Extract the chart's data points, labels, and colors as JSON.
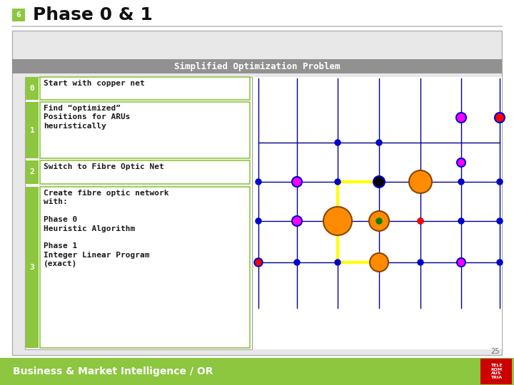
{
  "title": "Phase 0 & 1",
  "slide_number": "6",
  "section_header": "Simplified Optimization Problem",
  "steps": [
    {
      "num": "0",
      "text": "Start with copper net"
    },
    {
      "num": "1",
      "text": "Find “optimized”\nPositions for ARUs\nheuristically"
    },
    {
      "num": "2",
      "text": "Switch to Fibre Optic Net"
    },
    {
      "num": "3",
      "text": "Create fibre optic network\nwith:\n\nPhase 0\nHeuristic Algorithm\n\nPhase 1\nInteger Linear Program\n(exact)"
    }
  ],
  "footer_text": "Business & Market Intelligence / OR",
  "footer_bg": "#8dc63f",
  "slide_bg": "#ffffff",
  "header_bg": "#919191",
  "step_label_bg": "#8dc63f",
  "step_box_border": "#8dc63f",
  "grid_line_color": "#00008b",
  "yellow_line_color": "#ffff00",
  "blue_dot_color": "#0000cd",
  "telecom_red": "#cc0000",
  "slide_number_text": "25",
  "content_bg": "#ffffff",
  "content_border": "#aaaaaa",
  "outer_bg": "#e8e8e8"
}
